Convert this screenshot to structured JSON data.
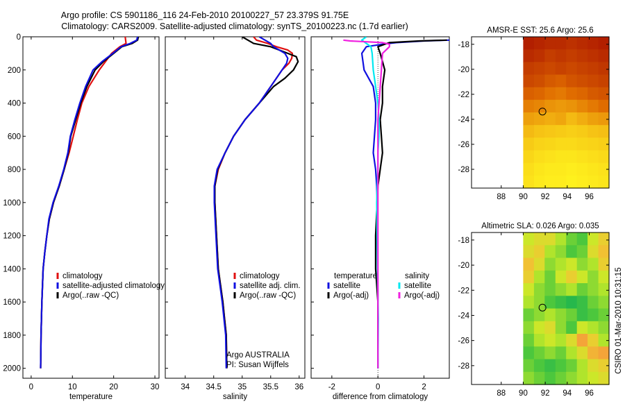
{
  "header": {
    "line1": "Argo profile: CS 5901186_116 24-Feb-2010 20100227_57 23.379S 91.75E",
    "line2": "Climatology: CARS2009. Satellite-adjusted climatology: synTS_20100223.nc (1.7d earlier)"
  },
  "side_label": "CSIRO 01-Mar-2010 10:31:15",
  "colors": {
    "red": "#e01010",
    "blue": "#1010e0",
    "black": "#000000",
    "cyan": "#00e8f0",
    "magenta": "#f020e0"
  },
  "chart_data": [
    {
      "type": "line",
      "id": "temperature",
      "xlabel": "temperature",
      "xlim": [
        -2,
        31
      ],
      "ylim": [
        0,
        2060
      ],
      "y_inverted": true,
      "xticks": [
        0,
        10,
        20,
        30
      ],
      "yticks": [
        0,
        200,
        400,
        600,
        800,
        1000,
        1200,
        1400,
        1600,
        1800,
        2000
      ],
      "legend": [
        "climatology",
        "satellite-adjusted climatology",
        "Argo(..raw -QC)"
      ],
      "series": [
        {
          "name": "climatology",
          "color": "red",
          "x": [
            22.8,
            22.9,
            23.0,
            21.5,
            19.5,
            16.5,
            14.0,
            12.3,
            11.2,
            10.2,
            9.2,
            8.0,
            6.8,
            5.4,
            4.4,
            3.8,
            3.3,
            2.9,
            2.6,
            2.4,
            2.3
          ],
          "y": [
            0,
            20,
            40,
            60,
            100,
            200,
            300,
            400,
            500,
            600,
            700,
            800,
            900,
            1000,
            1100,
            1200,
            1300,
            1400,
            1600,
            1800,
            2000
          ]
        },
        {
          "name": "Argo(..raw -QC)",
          "color": "black",
          "x": [
            26.0,
            25.8,
            24.5,
            22.0,
            20.0,
            17.5,
            15.5,
            13.5,
            12.0,
            10.8,
            9.6,
            9.0,
            8.0,
            6.8,
            5.4,
            4.4,
            3.8,
            3.3,
            2.9,
            2.6,
            2.4,
            2.3
          ],
          "y": [
            0,
            20,
            40,
            60,
            100,
            150,
            200,
            300,
            400,
            500,
            600,
            700,
            800,
            900,
            1000,
            1100,
            1200,
            1300,
            1400,
            1600,
            1800,
            2000
          ]
        },
        {
          "name": "satellite-adjusted climatology",
          "color": "blue",
          "x": [
            25.8,
            25.6,
            24.0,
            21.8,
            19.8,
            17.2,
            15.0,
            13.2,
            11.8,
            10.6,
            9.5,
            8.9,
            7.9,
            6.7,
            5.3,
            4.3,
            3.8,
            3.3,
            2.9,
            2.6,
            2.4,
            2.3
          ],
          "y": [
            0,
            20,
            40,
            60,
            100,
            150,
            200,
            300,
            400,
            500,
            600,
            700,
            800,
            900,
            1000,
            1100,
            1200,
            1300,
            1400,
            1600,
            1800,
            2000
          ]
        }
      ]
    },
    {
      "type": "line",
      "id": "salinity",
      "xlabel": "salinity",
      "xlim": [
        33.65,
        36.1
      ],
      "ylim": [
        0,
        2060
      ],
      "y_inverted": true,
      "xticks": [
        34,
        34.5,
        35,
        35.5,
        36
      ],
      "xticklabels": [
        "34",
        "34.5",
        "35",
        "35.5",
        "36"
      ],
      "legend": [
        "climatology",
        "satellite adj. clim.",
        "Argo(..raw -QC)"
      ],
      "annotation": [
        "Argo AUSTRALIA",
        "PI: Susan Wijffels"
      ],
      "series": [
        {
          "name": "climatology",
          "color": "red",
          "x": [
            35.2,
            35.25,
            35.45,
            35.6,
            35.8,
            35.88,
            35.87,
            35.82,
            35.7,
            35.5,
            35.3,
            35.05,
            34.85,
            34.7,
            34.58,
            34.52,
            34.52,
            34.55,
            34.58,
            34.62,
            34.66,
            34.69,
            34.72,
            34.73
          ],
          "y": [
            0,
            20,
            40,
            60,
            80,
            100,
            130,
            160,
            200,
            300,
            400,
            500,
            600,
            700,
            800,
            900,
            1000,
            1200,
            1400,
            1500,
            1600,
            1700,
            1800,
            2000
          ]
        },
        {
          "name": "Argo(..raw -QC)",
          "color": "black",
          "x": [
            35.0,
            35.1,
            35.2,
            35.35,
            35.5,
            35.8,
            35.95,
            35.98,
            35.9,
            35.75,
            35.55,
            35.3,
            35.05,
            34.85,
            34.7,
            34.57,
            34.52,
            34.52,
            34.55,
            34.58,
            34.62,
            34.66,
            34.69,
            34.72,
            34.73
          ],
          "y": [
            0,
            20,
            40,
            50,
            60,
            100,
            120,
            150,
            200,
            250,
            300,
            400,
            500,
            600,
            700,
            800,
            900,
            1000,
            1200,
            1400,
            1500,
            1600,
            1700,
            1800,
            2000
          ]
        },
        {
          "name": "satellite adj. clim.",
          "color": "blue",
          "x": [
            35.3,
            35.4,
            35.5,
            35.55,
            35.65,
            35.75,
            35.8,
            35.78,
            35.7,
            35.5,
            35.3,
            35.05,
            34.85,
            34.7,
            34.56,
            34.51,
            34.51,
            34.54,
            34.57,
            34.61,
            34.65,
            34.68,
            34.71,
            34.72
          ],
          "y": [
            0,
            20,
            40,
            60,
            80,
            100,
            130,
            160,
            200,
            300,
            400,
            500,
            600,
            700,
            800,
            900,
            1000,
            1200,
            1400,
            1500,
            1600,
            1700,
            1800,
            2000
          ]
        }
      ]
    },
    {
      "type": "line",
      "id": "difference",
      "xlabel": "difference from climatology",
      "xlim": [
        -2.9,
        3.1
      ],
      "ylim": [
        0,
        2060
      ],
      "y_inverted": true,
      "xticks": [
        -2,
        0,
        2
      ],
      "legend_groups": [
        {
          "title": "temperature",
          "items": [
            {
              "label": "satellite",
              "color": "blue"
            },
            {
              "label": "Argo(-adj)",
              "color": "black"
            }
          ]
        },
        {
          "title": "salinity",
          "items": [
            {
              "label": "satellite",
              "color": "cyan"
            },
            {
              "label": "Argo(-adj)",
              "color": "magenta"
            }
          ]
        }
      ],
      "series": [
        {
          "name": "temperature satellite",
          "color": "blue",
          "x": [
            3.1,
            2.0,
            0.8,
            0.2,
            -0.5,
            -0.7,
            -0.6,
            -0.2,
            -0.1,
            -0.1,
            -0.15,
            -0.2,
            -0.1,
            -0.05,
            -0.03,
            -0.02,
            0,
            0
          ],
          "y": [
            20,
            25,
            35,
            45,
            60,
            100,
            200,
            300,
            400,
            500,
            600,
            700,
            800,
            900,
            1000,
            1200,
            1600,
            2000
          ]
        },
        {
          "name": "temperature Argo(-adj)",
          "color": "black",
          "x": [
            3.0,
            1.8,
            0.5,
            0.3,
            0,
            0.1,
            0.2,
            0.3,
            0.2,
            0.2,
            0.1,
            0.15,
            0.2,
            0.1,
            0,
            -0.1,
            -0.1,
            0,
            0
          ],
          "y": [
            20,
            25,
            35,
            45,
            60,
            100,
            150,
            200,
            300,
            400,
            500,
            600,
            700,
            800,
            900,
            1200,
            1400,
            1600,
            2000
          ]
        },
        {
          "name": "salinity satellite",
          "color": "cyan",
          "x": [
            -0.5,
            -0.7,
            -0.5,
            -0.3,
            -0.25,
            -0.2,
            -0.1,
            0,
            0.05,
            0.05,
            0,
            0,
            -0.05,
            -0.02,
            0.02,
            0
          ],
          "y": [
            0,
            20,
            40,
            60,
            100,
            200,
            300,
            400,
            500,
            600,
            700,
            800,
            1000,
            1400,
            1700,
            2000
          ]
        },
        {
          "name": "salinity Argo(-adj)",
          "color": "magenta",
          "x": [
            -1.5,
            -1.2,
            0.2,
            0.5,
            0.5,
            0.2,
            0.15,
            0.1,
            0.05,
            0,
            0,
            0,
            0
          ],
          "y": [
            20,
            25,
            35,
            45,
            60,
            100,
            200,
            300,
            400,
            500,
            700,
            1000,
            2000
          ]
        }
      ]
    },
    {
      "type": "heatmap",
      "id": "sst_map",
      "title": "AMSR-E SST: 25.6 Argo: 25.6",
      "xlim": [
        85.3,
        97.8
      ],
      "ylim": [
        -29.5,
        -17.4
      ],
      "xticks": [
        88,
        90,
        92,
        94,
        96
      ],
      "yticks": [
        -18,
        -20,
        -22,
        -24,
        -26,
        -28
      ],
      "data_xrange": [
        90,
        97.8
      ],
      "rows_lat_top_to_bottom": [
        -18,
        -19,
        -20,
        -21,
        -22,
        -23,
        -24,
        -25,
        -26,
        -27,
        -28,
        -29
      ],
      "values": [
        [
          27.5,
          27.4,
          27.3,
          27.3,
          27.2,
          27.3,
          27.4,
          27.5
        ],
        [
          27.3,
          27.2,
          27.0,
          27.1,
          27.0,
          27.1,
          27.2,
          27.3
        ],
        [
          27.0,
          26.9,
          26.8,
          26.9,
          26.8,
          26.9,
          27.0,
          27.1
        ],
        [
          26.8,
          26.7,
          26.5,
          26.4,
          26.6,
          26.7,
          26.8,
          26.9
        ],
        [
          26.4,
          26.3,
          26.1,
          26.0,
          26.2,
          26.3,
          26.5,
          26.6
        ],
        [
          25.9,
          25.8,
          25.6,
          25.5,
          25.6,
          25.8,
          26.0,
          26.2
        ],
        [
          25.4,
          25.3,
          25.2,
          25.3,
          25.0,
          25.2,
          25.4,
          25.5
        ],
        [
          25.0,
          24.8,
          24.7,
          24.6,
          24.5,
          24.6,
          24.8,
          24.9
        ],
        [
          24.6,
          24.4,
          24.3,
          24.2,
          24.2,
          24.3,
          24.4,
          24.5
        ],
        [
          24.3,
          24.1,
          24.0,
          23.9,
          23.9,
          24.0,
          24.1,
          24.2
        ],
        [
          24.1,
          23.9,
          23.8,
          23.8,
          23.7,
          23.8,
          23.9,
          24.0
        ],
        [
          24.0,
          23.8,
          23.7,
          23.7,
          23.6,
          23.7,
          23.8,
          23.9
        ]
      ],
      "color_range": [
        23.5,
        27.6
      ],
      "marker": {
        "lon": 91.75,
        "lat": -23.379
      }
    },
    {
      "type": "heatmap",
      "id": "sla_map",
      "title": "Altimetric SLA: 0.026 Argo: 0.035",
      "xlim": [
        85.3,
        97.8
      ],
      "ylim": [
        -29.5,
        -17.4
      ],
      "xticks": [
        88,
        90,
        92,
        94,
        96
      ],
      "yticks": [
        -18,
        -20,
        -22,
        -24,
        -26,
        -28
      ],
      "data_xrange": [
        90,
        97.8
      ],
      "rows_lat_top_to_bottom": [
        -18,
        -19,
        -20,
        -21,
        -22,
        -23,
        -24,
        -25,
        -26,
        -27,
        -28,
        -29
      ],
      "values": [
        [
          0.03,
          0.04,
          0.04,
          0.02,
          0.0,
          -0.01,
          0.03,
          0.05
        ],
        [
          0.04,
          0.05,
          0.02,
          0.01,
          -0.01,
          0.0,
          0.04,
          0.06
        ],
        [
          0.06,
          0.04,
          0.01,
          0.02,
          0.03,
          0.01,
          0.02,
          0.05
        ],
        [
          0.05,
          0.02,
          0.0,
          0.03,
          0.05,
          0.03,
          0.01,
          0.03
        ],
        [
          0.03,
          0.01,
          0.0,
          0.01,
          0.02,
          0.0,
          0.01,
          0.02
        ],
        [
          0.02,
          0.01,
          -0.01,
          -0.02,
          -0.03,
          -0.02,
          0.0,
          0.01
        ],
        [
          0.0,
          0.01,
          0.02,
          0.01,
          0.0,
          -0.02,
          -0.01,
          0.0
        ],
        [
          0.01,
          0.03,
          0.04,
          0.01,
          -0.01,
          0.03,
          0.02,
          0.01
        ],
        [
          0.0,
          0.02,
          0.03,
          0.02,
          0.04,
          0.08,
          0.05,
          0.02
        ],
        [
          -0.01,
          0.0,
          0.01,
          0.0,
          0.02,
          0.04,
          0.07,
          0.08
        ],
        [
          0.0,
          -0.01,
          -0.02,
          -0.01,
          0.0,
          0.02,
          0.04,
          0.05
        ],
        [
          0.01,
          0.0,
          -0.01,
          0.0,
          0.01,
          0.02,
          0.03,
          0.04
        ]
      ],
      "color_range": [
        -0.05,
        0.09
      ],
      "marker": {
        "lon": 91.75,
        "lat": -23.379
      }
    }
  ]
}
